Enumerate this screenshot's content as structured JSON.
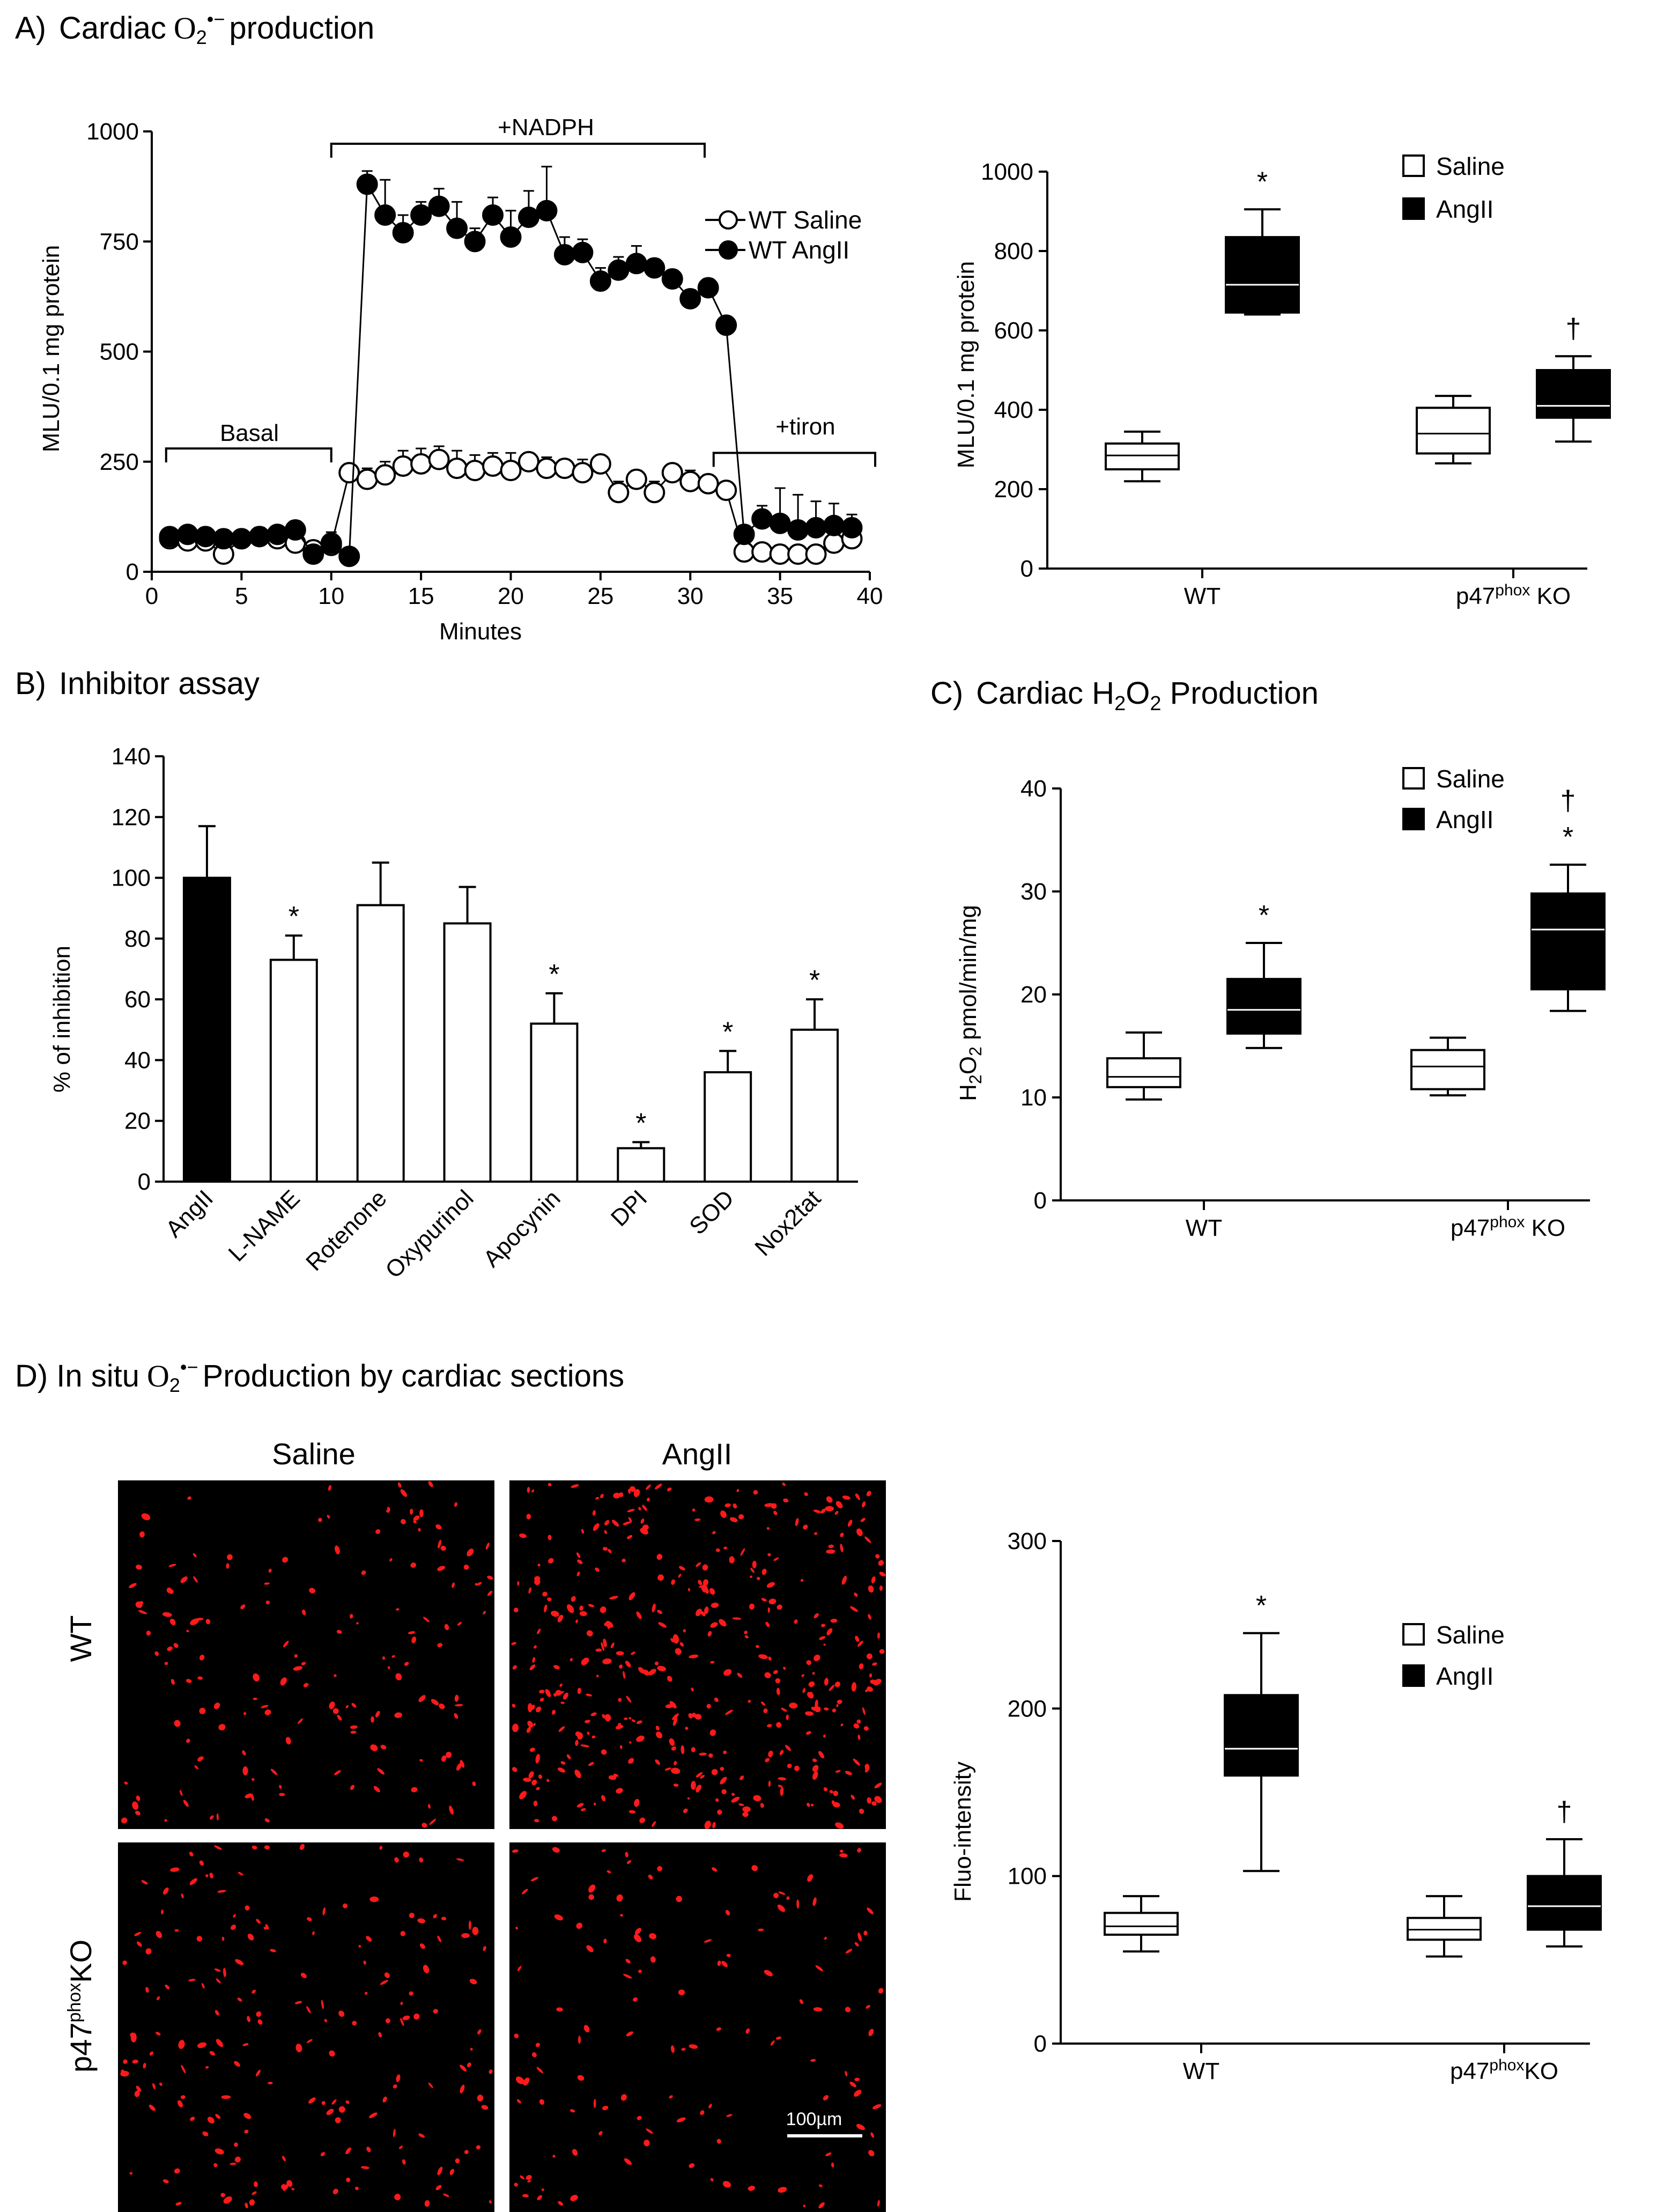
{
  "colors": {
    "ink": "#000000",
    "fill_open": "#ffffff",
    "fill_solid": "#000000",
    "micro_bg": "#000000",
    "micro_spot": "#ff1a1a"
  },
  "chart_data": [
    {
      "id": "A1",
      "type": "line",
      "panel_prefix": "A)",
      "title_pre": "Cardiac",
      "title_sym": "O",
      "title_sub": "2",
      "title_sup": "•−",
      "title_post": "production",
      "xlabel": "Minutes",
      "ylabel": "MLU/0.1 mg protein",
      "xlim": [
        0,
        40
      ],
      "ylim": [
        0,
        1000
      ],
      "xticks": [
        "0",
        "5",
        "10",
        "15",
        "20",
        "25",
        "30",
        "35",
        "40"
      ],
      "yticks": [
        "0",
        "250",
        "500",
        "750",
        "1000"
      ],
      "annotations": {
        "basal": "Basal",
        "nadph": "+NADPH",
        "tiron": "+tiron"
      },
      "series": [
        {
          "name": "WT Saline",
          "marker": "open",
          "x": [
            1,
            2,
            3,
            4,
            5,
            6,
            7,
            8,
            9,
            10,
            11,
            12,
            13,
            14,
            15,
            16,
            17,
            18,
            19,
            20,
            21,
            22,
            23,
            24,
            25,
            26,
            27,
            28,
            29,
            30,
            31,
            32,
            33,
            34,
            35,
            36,
            37,
            38,
            39
          ],
          "y": [
            75,
            70,
            70,
            40,
            75,
            80,
            75,
            65,
            50,
            60,
            225,
            210,
            220,
            240,
            245,
            255,
            235,
            230,
            240,
            230,
            250,
            235,
            235,
            225,
            245,
            180,
            210,
            180,
            225,
            205,
            200,
            185,
            45,
            45,
            40,
            40,
            40,
            65,
            75
          ],
          "err": [
            10,
            12,
            10,
            10,
            15,
            20,
            10,
            15,
            20,
            25,
            20,
            25,
            30,
            35,
            35,
            30,
            40,
            35,
            30,
            40,
            20,
            25,
            20,
            30,
            15,
            25,
            20,
            25,
            20,
            25,
            20,
            15,
            15,
            15,
            20,
            15,
            15,
            15,
            15
          ]
        },
        {
          "name": "WT AngII",
          "marker": "filled",
          "x": [
            1,
            2,
            3,
            4,
            5,
            6,
            7,
            8,
            9,
            10,
            11,
            12,
            13,
            14,
            15,
            16,
            17,
            18,
            19,
            20,
            21,
            22,
            23,
            24,
            25,
            26,
            27,
            28,
            29,
            30,
            31,
            32,
            33,
            34,
            35,
            36,
            37,
            38,
            39
          ],
          "y": [
            80,
            85,
            80,
            75,
            75,
            80,
            85,
            95,
            40,
            65,
            35,
            880,
            810,
            770,
            810,
            830,
            780,
            750,
            810,
            760,
            805,
            820,
            720,
            725,
            660,
            685,
            700,
            690,
            665,
            620,
            645,
            560,
            85,
            120,
            110,
            95,
            100,
            105,
            100
          ],
          "err": [
            15,
            10,
            20,
            20,
            15,
            20,
            15,
            20,
            20,
            25,
            20,
            30,
            80,
            40,
            30,
            40,
            60,
            30,
            40,
            60,
            60,
            100,
            40,
            30,
            30,
            30,
            40,
            20,
            20,
            20,
            20,
            20,
            20,
            30,
            80,
            80,
            60,
            50,
            30
          ]
        }
      ]
    },
    {
      "id": "A2",
      "type": "box",
      "ylabel": "MLU/0.1 mg protein",
      "ylim": [
        0,
        1000
      ],
      "yticks": [
        "0",
        "200",
        "400",
        "600",
        "800",
        "1000"
      ],
      "categories": [
        "WT",
        "p47phox KO"
      ],
      "category_labels": [
        {
          "pre": "WT",
          "sup": "",
          "post": ""
        },
        {
          "pre": "p47",
          "sup": "phox",
          "post": " KO"
        }
      ],
      "legend": [
        "Saline",
        "AngII"
      ],
      "series": [
        {
          "name": "Saline",
          "boxes": [
            {
              "min": 220,
              "q1": 250,
              "median": 285,
              "q3": 315,
              "max": 345
            },
            {
              "min": 265,
              "q1": 290,
              "median": 340,
              "q3": 405,
              "max": 435
            }
          ]
        },
        {
          "name": "AngII",
          "boxes": [
            {
              "min": 640,
              "q1": 645,
              "median": 715,
              "q3": 835,
              "max": 905
            },
            {
              "min": 320,
              "q1": 380,
              "median": 410,
              "q3": 500,
              "max": 535
            }
          ]
        }
      ],
      "marks": [
        {
          "cat": 0,
          "series": 1,
          "text": "*"
        },
        {
          "cat": 1,
          "series": 1,
          "text": "†"
        }
      ]
    },
    {
      "id": "B",
      "type": "bar",
      "panel_prefix": "B)",
      "title": "Inhibitor assay",
      "ylabel": "% of inhibition",
      "ylim": [
        0,
        140
      ],
      "yticks": [
        "0",
        "20",
        "40",
        "60",
        "80",
        "100",
        "120",
        "140"
      ],
      "categories": [
        "AngII",
        "L-NAME",
        "Rotenone",
        "Oxypurinol",
        "Apocynin",
        "DPI",
        "SOD",
        "Nox2tat"
      ],
      "values": [
        100,
        73,
        91,
        85,
        52,
        11,
        36,
        50
      ],
      "errors": [
        17,
        8,
        14,
        12,
        10,
        2,
        7,
        10
      ],
      "fills": [
        "black",
        "white",
        "white",
        "white",
        "white",
        "white",
        "white",
        "white"
      ],
      "significance": [
        "",
        "*",
        "",
        "",
        "*",
        "*",
        "*",
        "*"
      ]
    },
    {
      "id": "C",
      "type": "box",
      "panel_prefix": "C)",
      "title_pre": "Cardiac H",
      "title_sub1": "2",
      "title_mid": "O",
      "title_sub2": "2",
      "title_post": " Production",
      "ylabel_pre": "H",
      "ylabel_sub1": "2",
      "ylabel_mid": "O",
      "ylabel_sub2": "2",
      "ylabel_post": " pmol/min/mg",
      "ylim": [
        0,
        40
      ],
      "yticks": [
        "0",
        "10",
        "20",
        "30",
        "40"
      ],
      "categories": [
        "WT",
        "p47phox KO"
      ],
      "category_labels": [
        {
          "pre": "WT",
          "sup": "",
          "post": ""
        },
        {
          "pre": "p47",
          "sup": "phox",
          "post": " KO"
        }
      ],
      "legend": [
        "Saline",
        "AngII"
      ],
      "series": [
        {
          "name": "Saline",
          "boxes": [
            {
              "min": 9.8,
              "q1": 11.0,
              "median": 12.0,
              "q3": 13.8,
              "max": 16.3
            },
            {
              "min": 10.2,
              "q1": 10.8,
              "median": 13.0,
              "q3": 14.6,
              "max": 15.8
            }
          ]
        },
        {
          "name": "AngII",
          "boxes": [
            {
              "min": 14.8,
              "q1": 16.2,
              "median": 18.5,
              "q3": 21.5,
              "max": 25.0
            },
            {
              "min": 18.4,
              "q1": 20.5,
              "median": 26.3,
              "q3": 29.8,
              "max": 32.6
            }
          ]
        }
      ],
      "marks": [
        {
          "cat": 0,
          "series": 1,
          "text": "*"
        },
        {
          "cat": 1,
          "series": 1,
          "text": "*"
        },
        {
          "cat": 1,
          "series": 1,
          "text": "†"
        }
      ]
    },
    {
      "id": "D2",
      "type": "box",
      "ylabel": "Fluo-intensity",
      "ylim": [
        0,
        300
      ],
      "yticks": [
        "0",
        "100",
        "200",
        "300"
      ],
      "categories": [
        "WT",
        "p47phoxKO"
      ],
      "category_labels": [
        {
          "pre": "WT",
          "sup": "",
          "post": ""
        },
        {
          "pre": "p47",
          "sup": "phox",
          "post": "KO"
        }
      ],
      "legend": [
        "Saline",
        "AngII"
      ],
      "series": [
        {
          "name": "Saline",
          "boxes": [
            {
              "min": 55,
              "q1": 65,
              "median": 70,
              "q3": 78,
              "max": 88
            },
            {
              "min": 52,
              "q1": 62,
              "median": 68,
              "q3": 75,
              "max": 88
            }
          ]
        },
        {
          "name": "AngII",
          "boxes": [
            {
              "min": 103,
              "q1": 160,
              "median": 176,
              "q3": 208,
              "max": 245
            },
            {
              "min": 58,
              "q1": 68,
              "median": 82,
              "q3": 100,
              "max": 122
            }
          ]
        }
      ],
      "marks": [
        {
          "cat": 0,
          "series": 1,
          "text": "*"
        },
        {
          "cat": 1,
          "series": 1,
          "text": "†"
        }
      ]
    }
  ],
  "panelD": {
    "prefix": "D)",
    "title_pre": "In situ",
    "title_sym": "O",
    "title_sub": "2",
    "title_sup": "•−",
    "title_post": "Production by cardiac sections",
    "col_labels": [
      "Saline",
      "AngII"
    ],
    "row_labels": [
      {
        "pre": "WT",
        "sup": "",
        "post": ""
      },
      {
        "pre": "p47",
        "sup": "phox",
        "post": "KO"
      }
    ],
    "scale_bar": "100µm",
    "spot_density": [
      160,
      420,
      190,
      130
    ]
  }
}
